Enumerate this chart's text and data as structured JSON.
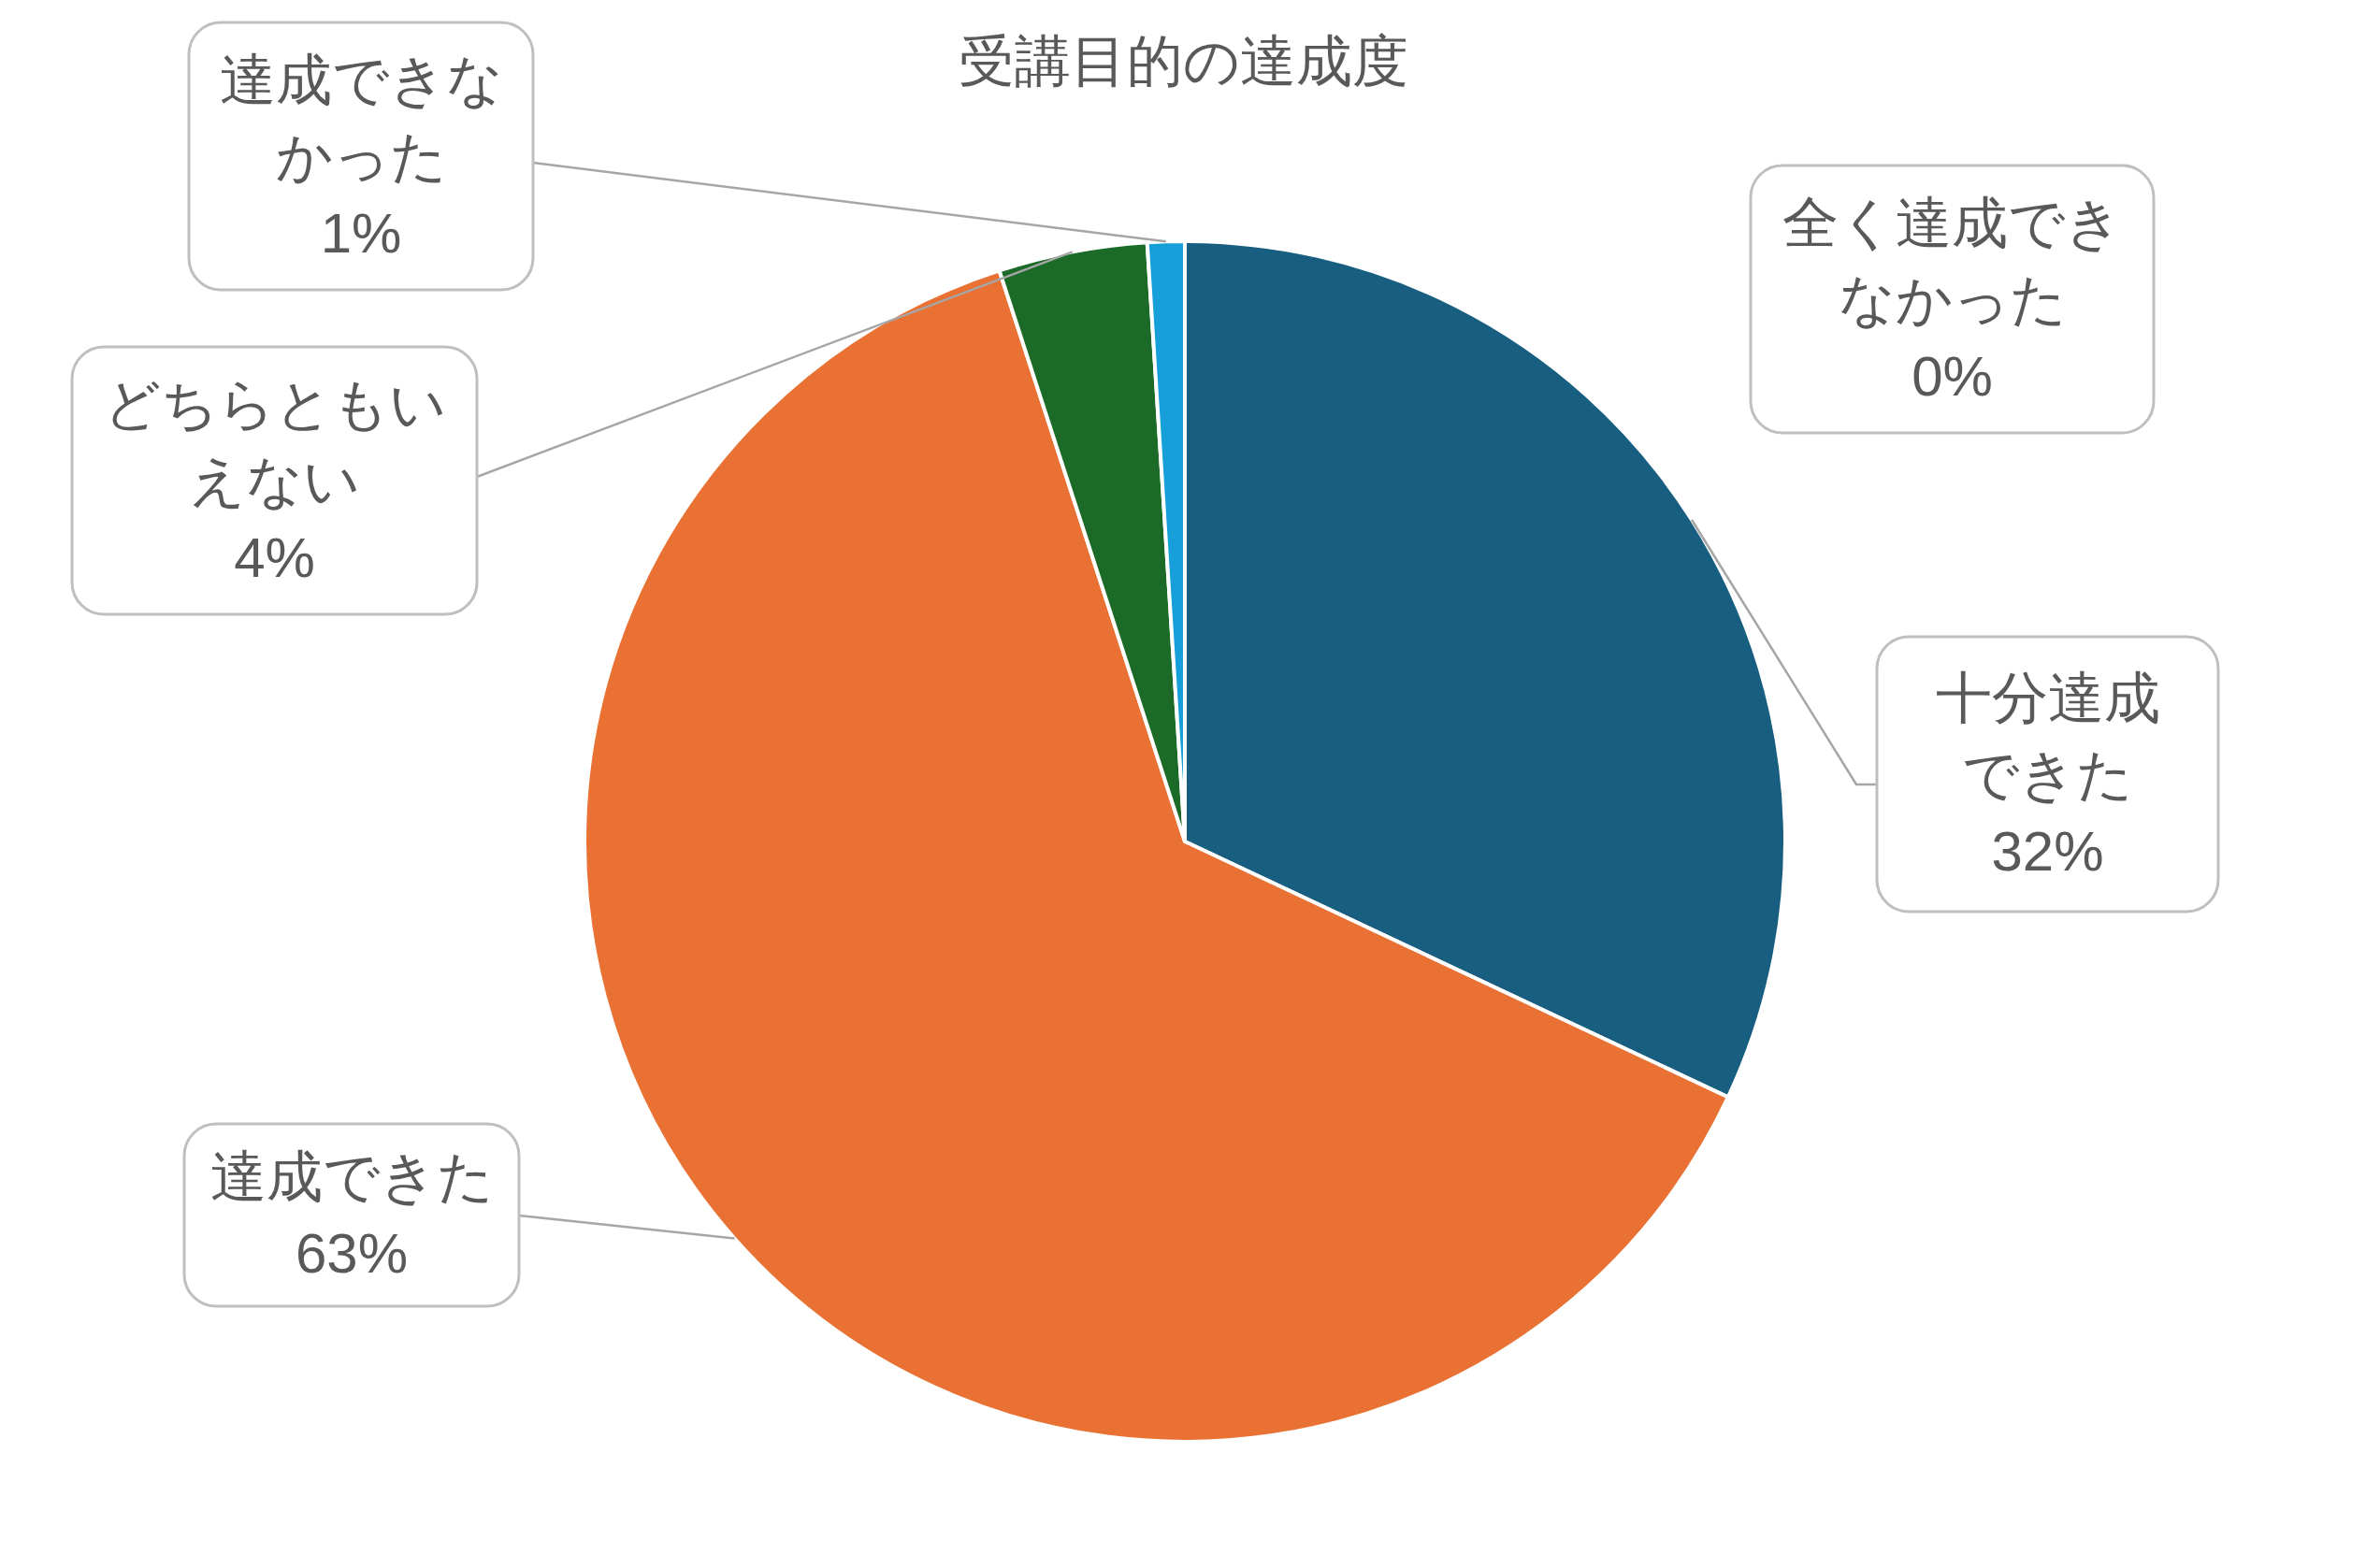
{
  "chart_data": {
    "type": "pie",
    "title": "受講目的の達成度",
    "categories": [
      "十分達成できた",
      "達成できた",
      "どちらともいえない",
      "達成できなかった",
      "全く達成できなかった"
    ],
    "values": [
      32,
      63,
      4,
      1,
      0
    ],
    "colors": [
      "#175e80",
      "#e87133",
      "#1c6a27",
      "#169fd9",
      "#a5a5a5"
    ],
    "value_labels": [
      "32%",
      "63%",
      "4%",
      "1%",
      "0%"
    ]
  }
}
